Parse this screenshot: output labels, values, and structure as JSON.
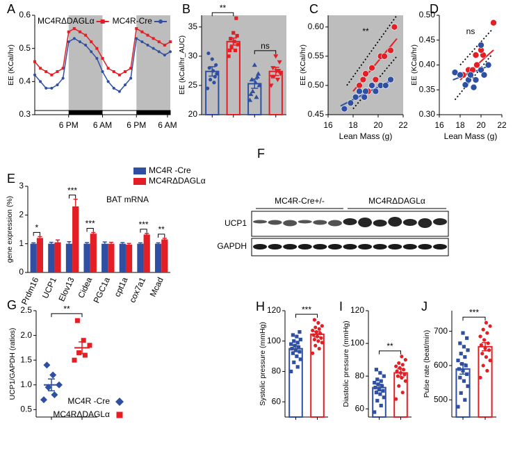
{
  "panels": [
    "A",
    "B",
    "C",
    "D",
    "E",
    "F",
    "G",
    "H",
    "I",
    "J"
  ],
  "blot": {
    "groups": [
      "MC4R-Cre+/-",
      "MC4RΔDAGLα"
    ],
    "rows": [
      "UCP1",
      "GAPDH"
    ]
  },
  "chart_data": [
    {
      "type": "line",
      "ylabel": "EE (KCal/hr)",
      "x": [
        0,
        2,
        4,
        6,
        8,
        10,
        12,
        14,
        16,
        18,
        20,
        22,
        24,
        26,
        28,
        30,
        32,
        34,
        36,
        38,
        40,
        42,
        44,
        46,
        48
      ],
      "xlim": [
        0,
        48
      ],
      "xticks": [
        {
          "value": 12,
          "label": "6 PM"
        },
        {
          "value": 24,
          "label": "6 AM"
        },
        {
          "value": 36,
          "label": "6 PM"
        },
        {
          "value": 47,
          "label": "6 AM"
        }
      ],
      "ylim": [
        0.3,
        0.6
      ],
      "yticks": [
        0.3,
        0.4,
        0.5,
        0.6
      ],
      "dark_periods": [
        [
          12,
          24
        ],
        [
          36,
          48
        ]
      ],
      "series": [
        {
          "name": "MC4RΔDAGLα",
          "color": "#e31e24",
          "marker": "square",
          "values": [
            0.46,
            0.44,
            0.43,
            0.42,
            0.43,
            0.44,
            0.55,
            0.56,
            0.55,
            0.54,
            0.52,
            0.5,
            0.47,
            0.44,
            0.43,
            0.42,
            0.43,
            0.44,
            0.56,
            0.55,
            0.54,
            0.53,
            0.52,
            0.51,
            0.52
          ]
        },
        {
          "name": "MC4R-Cre",
          "color": "#2e4fa2",
          "marker": "circle",
          "values": [
            0.42,
            0.4,
            0.38,
            0.38,
            0.39,
            0.41,
            0.52,
            0.53,
            0.52,
            0.51,
            0.49,
            0.47,
            0.43,
            0.4,
            0.38,
            0.37,
            0.39,
            0.41,
            0.53,
            0.52,
            0.51,
            0.5,
            0.49,
            0.48,
            0.49
          ]
        }
      ]
    },
    {
      "type": "bar",
      "ylabel": "EE (kCal/hr_AUC)",
      "background": "#bdbdbd",
      "categories": [
        null,
        null,
        null,
        null
      ],
      "values": [
        27.4,
        32.5,
        25.3,
        27.4
      ],
      "errors": [
        0.8,
        0.6,
        0.8,
        0.7
      ],
      "colors": [
        "#2e4fa2",
        "#e31e24",
        "#2e4fa2",
        "#e31e24"
      ],
      "markers": [
        "circle",
        "square",
        "triangle",
        "triangle-down"
      ],
      "points": [
        [
          24.5,
          25.5,
          26,
          27,
          27.5,
          28,
          28.5,
          29.5,
          30.5,
          26.5
        ],
        [
          30,
          31,
          31.5,
          32,
          32.5,
          33,
          33.5,
          34,
          31,
          36.5
        ],
        [
          22.5,
          23,
          24,
          25,
          25.5,
          26,
          27,
          28.5,
          23.5,
          26.5
        ],
        [
          25,
          26,
          26.5,
          27,
          27.5,
          28,
          29,
          30,
          26.5,
          27.5
        ]
      ],
      "ylim": [
        20,
        37
      ],
      "yticks": [
        20,
        25,
        30,
        35
      ],
      "brackets": [
        {
          "text": "**",
          "between": [
            0,
            1
          ]
        },
        {
          "text": "ns",
          "between": [
            2,
            3
          ]
        }
      ]
    },
    {
      "type": "scatter",
      "ylabel": "EE (KCal/hr)",
      "xlabel": "Lean Mass (g)",
      "background": "#bdbdbd",
      "annotation": "**",
      "xlim": [
        16,
        22
      ],
      "xticks": [
        16,
        18,
        20,
        22
      ],
      "ylim": [
        0.45,
        0.62
      ],
      "yticks": [
        0.45,
        {
          "value": 0.5,
          "label": "0.50"
        },
        0.55,
        {
          "value": 0.6,
          "label": "0.60"
        }
      ],
      "series": [
        {
          "color": "#e31e24",
          "x": [
            18.5,
            19,
            19.5,
            19.8,
            20.2,
            20.5,
            21,
            21.3,
            19.2,
            18.8
          ],
          "y": [
            0.5,
            0.52,
            0.53,
            0.51,
            0.55,
            0.55,
            0.56,
            0.6,
            0.49,
            0.51
          ]
        },
        {
          "color": "#2e4fa2",
          "x": [
            17.3,
            17.8,
            18.2,
            18.5,
            19,
            19.5,
            19.8,
            20.2,
            20.6,
            21,
            18.9
          ],
          "y": [
            0.46,
            0.47,
            0.48,
            0.49,
            0.49,
            0.5,
            0.49,
            0.5,
            0.5,
            0.51,
            0.48
          ]
        }
      ],
      "fits": [
        {
          "color": "#e31e24",
          "dash": false,
          "x": [
            18,
            21.5
          ],
          "y": [
            0.49,
            0.58
          ]
        },
        {
          "color": "#2e4fa2",
          "dash": false,
          "x": [
            17,
            21.2
          ],
          "y": [
            0.465,
            0.51
          ]
        },
        {
          "color": "#000000",
          "dash": true,
          "x": [
            17.5,
            21.5
          ],
          "y": [
            0.5,
            0.62
          ]
        },
        {
          "color": "#000000",
          "dash": true,
          "x": [
            18,
            21.5
          ],
          "y": [
            0.46,
            0.55
          ]
        }
      ]
    },
    {
      "type": "scatter",
      "ylabel": "EE (KCal/hr)",
      "xlabel": "Lean Mass (g)",
      "annotation": "ns",
      "xlim": [
        16,
        22
      ],
      "xticks": [
        16,
        18,
        20,
        22
      ],
      "ylim": [
        0.3,
        0.5
      ],
      "yticks": [
        {
          "value": 0.3,
          "label": "0.30"
        },
        0.35,
        {
          "value": 0.4,
          "label": "0.40"
        },
        0.45,
        {
          "value": 0.5,
          "label": "0.50"
        }
      ],
      "series": [
        {
          "color": "#e31e24",
          "x": [
            18.3,
            18.8,
            19.2,
            19.5,
            19.6,
            20.2,
            20,
            21.2
          ],
          "y": [
            0.38,
            0.39,
            0.39,
            0.42,
            0.4,
            0.42,
            0.43,
            0.485
          ]
        },
        {
          "color": "#2e4fa2",
          "x": [
            17.5,
            18,
            18.5,
            18.8,
            19,
            19.3,
            19.5,
            20,
            20.3,
            20.7,
            20
          ],
          "y": [
            0.385,
            0.38,
            0.36,
            0.37,
            0.38,
            0.355,
            0.37,
            0.39,
            0.38,
            0.4,
            0.44
          ]
        }
      ],
      "fits": [
        {
          "color": "#e31e24",
          "dash": false,
          "x": [
            18,
            21.2
          ],
          "y": [
            0.37,
            0.43
          ]
        },
        {
          "color": "#2e4fa2",
          "dash": false,
          "x": [
            17.3,
            21
          ],
          "y": [
            0.37,
            0.4
          ]
        },
        {
          "color": "#000000",
          "dash": true,
          "x": [
            17.5,
            21
          ],
          "y": [
            0.33,
            0.42
          ]
        },
        {
          "color": "#000000",
          "dash": true,
          "x": [
            18,
            21
          ],
          "y": [
            0.4,
            0.47
          ]
        }
      ]
    },
    {
      "type": "grouped_bar",
      "ylabel": "gene expression (%)",
      "annotation": "BAT mRNA",
      "categories": [
        "Prdm16",
        "UCP1",
        "Elov13",
        "Cidea",
        "PGC1a",
        "cpt1a",
        "cox7a1",
        "Mcad"
      ],
      "ylim": [
        0,
        3
      ],
      "yticks": [
        0,
        1,
        2,
        3
      ],
      "series": [
        {
          "name": "MC4R -Cre",
          "color": "#2e4fa2",
          "values": [
            1,
            1,
            1,
            1,
            1,
            1,
            1,
            1
          ],
          "errors": [
            0.03,
            0.05,
            0.07,
            0.04,
            0.06,
            0.04,
            0.03,
            0.03
          ]
        },
        {
          "name": "MC4RΔDAGLα",
          "color": "#e31e24",
          "values": [
            1.2,
            1.05,
            2.3,
            1.35,
            1,
            0.97,
            1.32,
            1.15
          ],
          "errors": [
            0.05,
            0.08,
            0.25,
            0.04,
            0.05,
            0.04,
            0.04,
            0.04
          ]
        }
      ],
      "significance": [
        "*",
        null,
        "***",
        "***",
        null,
        null,
        "***",
        "**"
      ]
    },
    {
      "type": "dot",
      "ylabel": "UCP1/GAPDH  (ratios)",
      "ylim": [
        0.35,
        2.5
      ],
      "yticks": [
        0.5,
        {
          "value": 1,
          "label": "1.0"
        },
        1.5,
        {
          "value": 2,
          "label": "2.0"
        },
        2.5
      ],
      "series": [
        {
          "name": "MC4R -Cre",
          "color": "#2e4fa2",
          "marker": "diamond",
          "values": [
            0.7,
            0.8,
            0.95,
            1,
            1.2,
            1.4
          ],
          "mean": 1,
          "error": 0.12
        },
        {
          "name": "MC4RΔDAGLα",
          "color": "#e31e24",
          "marker": "square",
          "values": [
            1.5,
            1.6,
            1.65,
            1.8,
            1.9,
            2.3
          ],
          "mean": 1.75,
          "error": 0.12
        }
      ],
      "brackets": [
        {
          "text": "**",
          "between": [
            0,
            1
          ]
        }
      ]
    },
    {
      "type": "bar",
      "ylabel": "Systolic pressure (mmHg)",
      "categories": [
        null,
        null
      ],
      "values": [
        95,
        104.5
      ],
      "errors": [
        2,
        1.8
      ],
      "colors": [
        "#2e4fa2",
        "#e31e24"
      ],
      "markers": [
        "square",
        "circle"
      ],
      "points": [
        [
          80,
          83,
          86,
          88,
          90,
          92,
          93,
          94,
          95,
          96,
          97,
          98,
          99,
          100,
          101,
          103,
          104,
          106
        ],
        [
          92,
          95,
          97,
          99,
          100,
          101,
          102,
          103,
          104,
          105,
          106,
          107,
          108,
          109,
          110,
          112,
          114
        ]
      ],
      "ylim": [
        50,
        120
      ],
      "yticks": [
        60,
        80,
        100,
        120
      ],
      "brackets": [
        {
          "text": "***",
          "between": [
            0,
            1
          ]
        }
      ]
    },
    {
      "type": "bar",
      "ylabel": "Diastolic pressure (mmHg)",
      "categories": [
        null,
        null
      ],
      "values": [
        73,
        82
      ],
      "errors": [
        2,
        2.5
      ],
      "colors": [
        "#2e4fa2",
        "#e31e24"
      ],
      "markers": [
        "square",
        "circle"
      ],
      "points": [
        [
          58,
          62,
          65,
          67,
          69,
          70,
          71,
          72,
          73,
          74,
          75,
          76,
          77,
          78,
          80,
          82,
          84
        ],
        [
          66,
          70,
          74,
          77,
          79,
          80,
          81,
          82,
          83,
          84,
          85,
          86,
          87,
          88,
          90,
          92
        ]
      ],
      "ylim": [
        55,
        120
      ],
      "yticks": [
        60,
        80,
        100,
        120
      ],
      "brackets": [
        {
          "text": "**",
          "between": [
            0,
            1
          ]
        }
      ]
    },
    {
      "type": "bar",
      "ylabel": "Pulse rate (beat/min)",
      "categories": [
        null,
        null
      ],
      "values": [
        590,
        655
      ],
      "errors": [
        15,
        12
      ],
      "colors": [
        "#2e4fa2",
        "#e31e24"
      ],
      "markers": [
        "square",
        "circle"
      ],
      "points": [
        [
          480,
          500,
          520,
          540,
          555,
          565,
          575,
          585,
          590,
          600,
          605,
          615,
          625,
          635,
          645,
          655,
          665,
          680,
          695
        ],
        [
          565,
          585,
          600,
          615,
          625,
          635,
          645,
          650,
          660,
          665,
          675,
          685,
          695,
          705,
          715,
          725
        ]
      ],
      "ylim": [
        450,
        760
      ],
      "yticks": [
        500,
        600,
        700
      ],
      "brackets": [
        {
          "text": "***",
          "between": [
            0,
            1
          ]
        }
      ]
    }
  ]
}
